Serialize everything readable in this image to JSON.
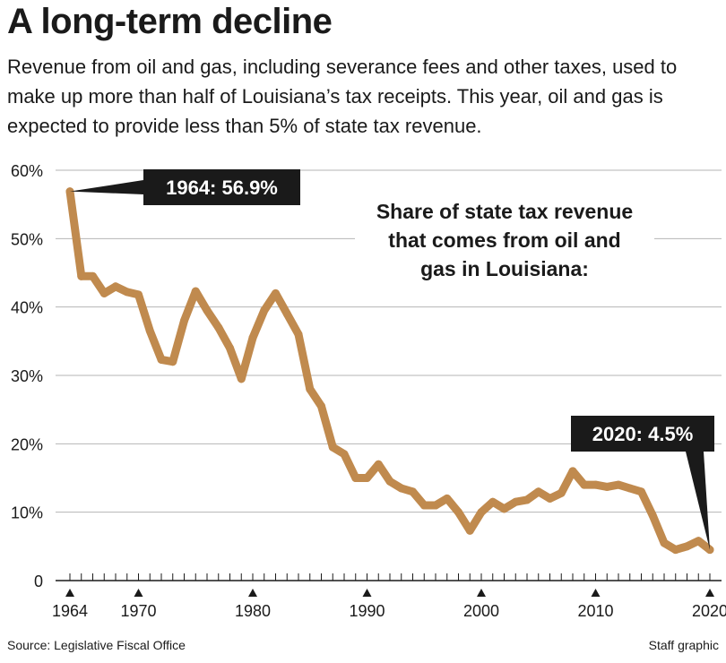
{
  "header": {
    "title": "A long-term decline",
    "subtitle": "Revenue from oil and gas, including severance fees and other taxes, used to make up more than half of Louisiana’s tax receipts. This year, oil and gas is expected to provide less than 5% of state tax revenue."
  },
  "footer": {
    "source": "Source: Legislative Fiscal Office",
    "credit": "Staff graphic"
  },
  "chart_data": {
    "type": "line",
    "title": "Share of state tax revenue that comes from oil and gas in Louisiana:",
    "title_lines": [
      "Share of state tax revenue",
      "that comes from oil and",
      "gas in Louisiana:"
    ],
    "xlabel": "",
    "ylabel": "",
    "xlim": [
      1964,
      2020
    ],
    "ylim": [
      0,
      60
    ],
    "yticks": [
      0,
      10,
      20,
      30,
      40,
      50,
      60
    ],
    "ytick_labels": [
      "0",
      "10%",
      "20%",
      "30%",
      "40%",
      "50%",
      "60%"
    ],
    "xticks": [
      1964,
      1970,
      1980,
      1990,
      2000,
      2010,
      2020
    ],
    "xtick_labels": [
      "1964",
      "1970",
      "1980",
      "1990",
      "2000",
      "2010",
      "2020"
    ],
    "grid": true,
    "line_color": "#c08a4e",
    "series": [
      {
        "x": [
          1964,
          1965,
          1966,
          1967,
          1968,
          1969,
          1970,
          1971,
          1972,
          1973,
          1974,
          1975,
          1976,
          1977,
          1978,
          1979,
          1980,
          1981,
          1982,
          1983,
          1984,
          1985,
          1986,
          1987,
          1988,
          1989,
          1990,
          1991,
          1992,
          1993,
          1994,
          1995,
          1996,
          1997,
          1998,
          1999,
          2000,
          2001,
          2002,
          2003,
          2004,
          2005,
          2006,
          2007,
          2008,
          2009,
          2010,
          2011,
          2012,
          2013,
          2014,
          2015,
          2016,
          2017,
          2018,
          2019,
          2020
        ],
        "values": [
          56.9,
          44.5,
          44.5,
          42.0,
          43.0,
          42.2,
          41.8,
          36.5,
          32.3,
          32.0,
          38.0,
          42.3,
          39.5,
          37.0,
          34.0,
          29.5,
          35.5,
          39.5,
          42.0,
          39.0,
          36.0,
          28.0,
          25.5,
          19.5,
          18.5,
          15.0,
          15.0,
          17.0,
          14.5,
          13.5,
          13.0,
          11.0,
          11.0,
          12.0,
          10.0,
          7.3,
          10.0,
          11.5,
          10.5,
          11.5,
          11.8,
          13.0,
          12.0,
          12.8,
          16.0,
          14.0,
          14.0,
          13.7,
          14.0,
          13.5,
          13.0,
          9.5,
          5.5,
          4.5,
          5.0,
          5.8,
          4.5
        ]
      }
    ],
    "annotations": [
      {
        "x": 1964,
        "y": 56.9,
        "label": "1964: 56.9%"
      },
      {
        "x": 2020,
        "y": 4.5,
        "label": "2020: 4.5%"
      }
    ]
  }
}
